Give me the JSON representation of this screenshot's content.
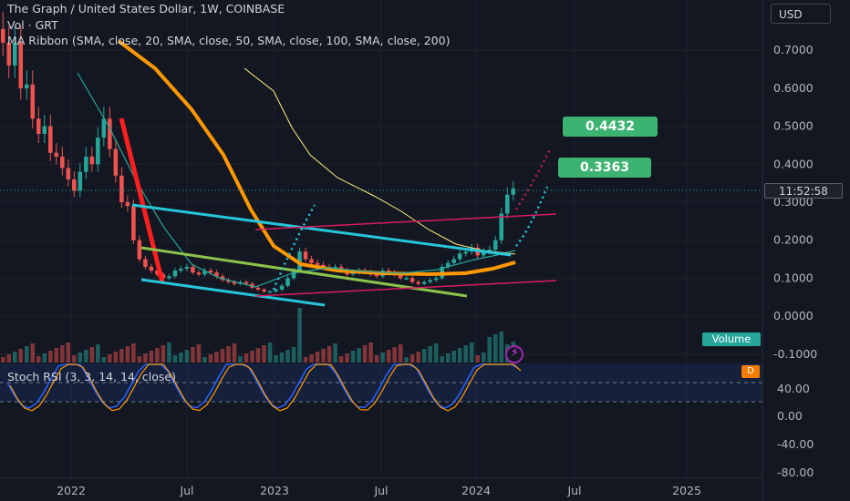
{
  "legend": {
    "title": "The Graph / United States Dollar, 1W, COINBASE",
    "vol": "Vol · GRT",
    "ma": "MA Ribbon (SMA, close, 20, SMA, close, 50, SMA, close, 100, SMA, close, 200)",
    "stoch": "Stoch RSI (3, 3, 14, 14, close)"
  },
  "currency": "USD",
  "price_timer": "11:52:58",
  "callouts": [
    "0.4432",
    "0.3363"
  ],
  "volume_label": "Volume",
  "d_label": "D",
  "colors": {
    "bg": "#131722",
    "up": "#26a69a",
    "down": "#ef5350",
    "cyan": "#26c6da",
    "orange": "#ff9800",
    "red": "#ff1f1f",
    "green_line": "#8bc34a",
    "pink": "#d81b60",
    "yellow": "#fff176",
    "stoch_k": "#2962ff",
    "stoch_d": "#ff9800"
  },
  "chart_data": {
    "type": "candlestick",
    "symbol": "GRT/USD",
    "interval": "1W",
    "x_tick_labels": [
      "2022",
      "Jul",
      "2023",
      "Jul",
      "2024",
      "Jul",
      "2025"
    ],
    "price_axis_ticks": [
      "0.7000",
      "0.6000",
      "0.5000",
      "0.4000",
      "0.3000",
      "0.2000",
      "0.1000",
      "0.0000",
      "-0.1000"
    ],
    "stoch_axis_ticks": [
      "40.00",
      "0.00",
      "-40.00",
      "-80.00"
    ],
    "price_range": [
      -0.12,
      0.8
    ],
    "price_series": [
      0.72,
      0.66,
      0.72,
      0.6,
      0.61,
      0.52,
      0.48,
      0.5,
      0.43,
      0.42,
      0.39,
      0.36,
      0.33,
      0.38,
      0.42,
      0.4,
      0.47,
      0.52,
      0.44,
      0.37,
      0.3,
      0.29,
      0.2,
      0.15,
      0.13,
      0.12,
      0.11,
      0.1,
      0.105,
      0.12,
      0.125,
      0.13,
      0.115,
      0.11,
      0.12,
      0.115,
      0.105,
      0.095,
      0.09,
      0.085,
      0.09,
      0.085,
      0.075,
      0.07,
      0.065,
      0.065,
      0.07,
      0.08,
      0.1,
      0.12,
      0.17,
      0.15,
      0.14,
      0.135,
      0.13,
      0.125,
      0.13,
      0.12,
      0.11,
      0.115,
      0.12,
      0.115,
      0.11,
      0.105,
      0.12,
      0.115,
      0.11,
      0.1,
      0.1,
      0.09,
      0.085,
      0.09,
      0.095,
      0.1,
      0.13,
      0.14,
      0.15,
      0.165,
      0.17,
      0.18,
      0.16,
      0.17,
      0.175,
      0.2,
      0.27,
      0.32,
      0.3363
    ],
    "projections": [
      {
        "label": "0.4432",
        "value": 0.4432
      },
      {
        "label": "0.3363",
        "value": 0.3363
      }
    ]
  }
}
